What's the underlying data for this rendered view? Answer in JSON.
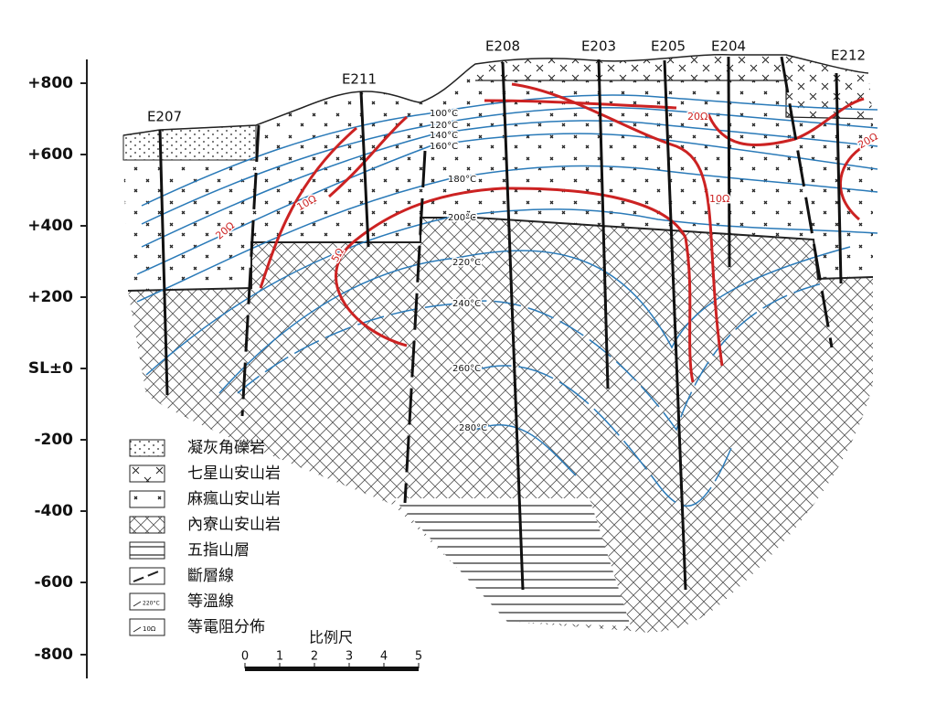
{
  "axis": {
    "labels": [
      "+800",
      "+600",
      "+400",
      "+200",
      "SL±0",
      "-200",
      "-400",
      "-600",
      "-800"
    ]
  },
  "wells": [
    "E207",
    "E211",
    "E208",
    "E203",
    "E205",
    "E204",
    "E212"
  ],
  "isotherms": [
    "100°C",
    "120°C",
    "140°C",
    "160°C",
    "180°C",
    "200°C",
    "220°C",
    "240°C",
    "260°C",
    "280°C"
  ],
  "resistivity": [
    "20Ω",
    "10Ω",
    "5Ω",
    "20Ω",
    "10Ω",
    "20Ω"
  ],
  "legend": [
    "凝灰角礫岩",
    "七星山安山岩",
    "麻瘋山安山岩",
    "內寮山安山岩",
    "五指山層",
    "斷層線",
    "等溫線",
    "等電阻分佈"
  ],
  "legend_icons": [
    "220°C",
    "10Ω"
  ],
  "scale": {
    "title": "比例尺",
    "ticks": [
      "0",
      "1",
      "2",
      "3",
      "4",
      "5"
    ]
  }
}
